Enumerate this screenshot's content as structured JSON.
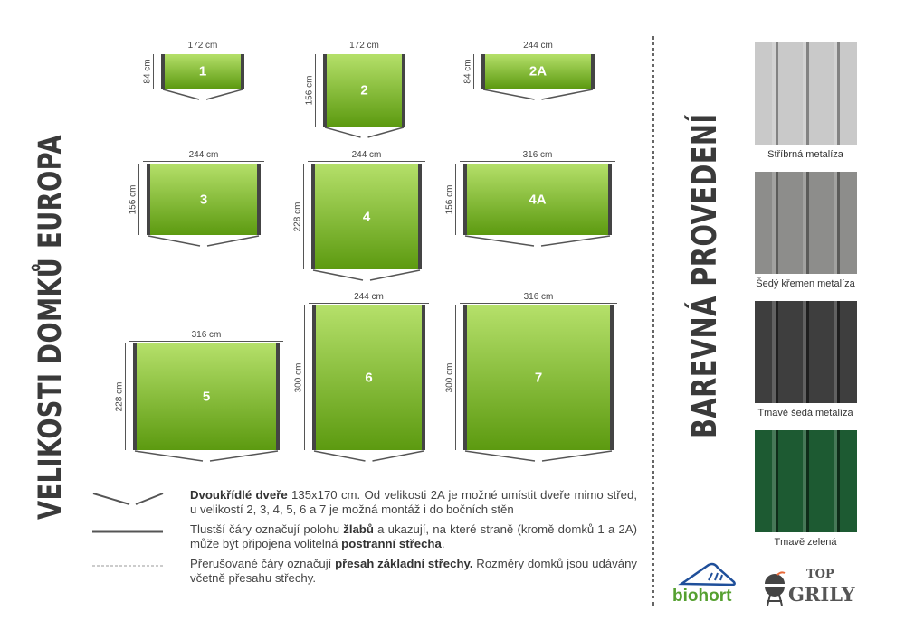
{
  "title_left": "VELIKOSTI DOMKŮ EUROPA",
  "title_right": "BAREVNÁ PROVEDENÍ",
  "sheds": [
    {
      "label": "1",
      "width": "172 cm",
      "depth": "84 cm"
    },
    {
      "label": "2",
      "width": "172 cm",
      "depth": "156 cm"
    },
    {
      "label": "2A",
      "width": "244 cm",
      "depth": "84 cm"
    },
    {
      "label": "3",
      "width": "244 cm",
      "depth": "156 cm"
    },
    {
      "label": "4",
      "width": "244 cm",
      "depth": "228 cm"
    },
    {
      "label": "4A",
      "width": "316 cm",
      "depth": "156 cm"
    },
    {
      "label": "5",
      "width": "316 cm",
      "depth": "228 cm"
    },
    {
      "label": "6",
      "width": "244 cm",
      "depth": "300 cm"
    },
    {
      "label": "7",
      "width": "316 cm",
      "depth": "300 cm"
    }
  ],
  "legend": [
    {
      "bold": "Dvoukřídlé dveře",
      "text": " 135x170 cm. Od velikosti 2A je možné umístit dveře mimo střed, u velikostí 2, 3, 4, 5, 6 a 7 je možná montáž i do bočních stěn"
    },
    {
      "text1": "Tlustší čáry označují polohu ",
      "bold1": "žlabů",
      "text2": " a ukazují, na které straně (kromě domků 1 a 2A) může být připojena volitelná ",
      "bold2": "postranní střecha",
      "text3": "."
    },
    {
      "text1": "Přerušované čáry označují ",
      "bold1": "přesah základní střechy.",
      "text2": " Rozměry domků jsou udávány včetně přesahu střechy."
    }
  ],
  "colors": [
    {
      "name": "Stříbrná metalíza",
      "hex": "#c9c9c9"
    },
    {
      "name": "Šedý křemen metalíza",
      "hex": "#8d8d8b"
    },
    {
      "name": "Tmavě šedá metalíza",
      "hex": "#3e3e3e"
    },
    {
      "name": "Tmavě zelená",
      "hex": "#1d5a32"
    }
  ],
  "logos": {
    "biohort": "biohort",
    "topgrily_top": "TOP",
    "topgrily_main": "GRILY"
  }
}
